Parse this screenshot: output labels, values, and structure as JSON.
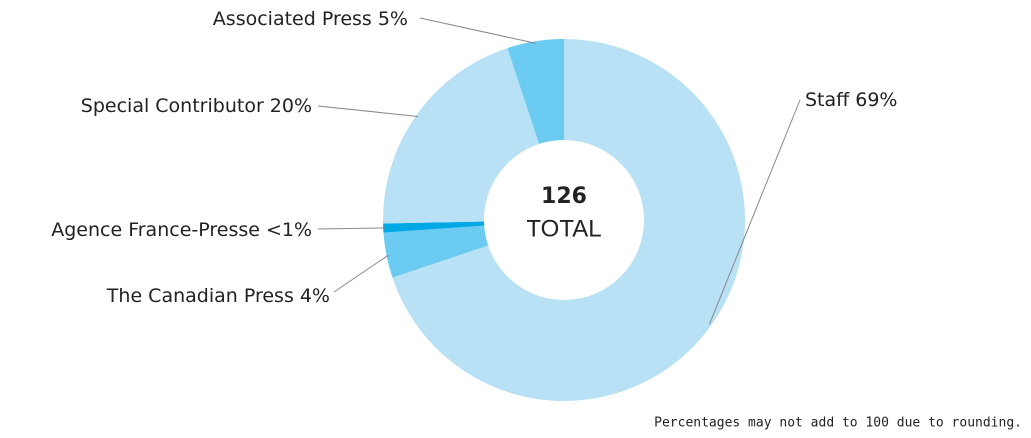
{
  "chart_data": {
    "type": "pie",
    "categories": [
      "Staff",
      "The Canadian Press",
      "Agence France-Presse",
      "Special Contributor",
      "Associated Press"
    ],
    "values": [
      69,
      4,
      0.8,
      20,
      5
    ],
    "value_labels": [
      "69%",
      "4%",
      "<1%",
      "20%",
      "5%"
    ],
    "colors": [
      "#b8e1f6",
      "#6ccbf1",
      "#00a9e6",
      "#b8e1f6",
      "#6ccbf1"
    ],
    "total": 126,
    "total_label": "TOTAL",
    "note": "Percentages may not add to 100 due to rounding."
  }
}
